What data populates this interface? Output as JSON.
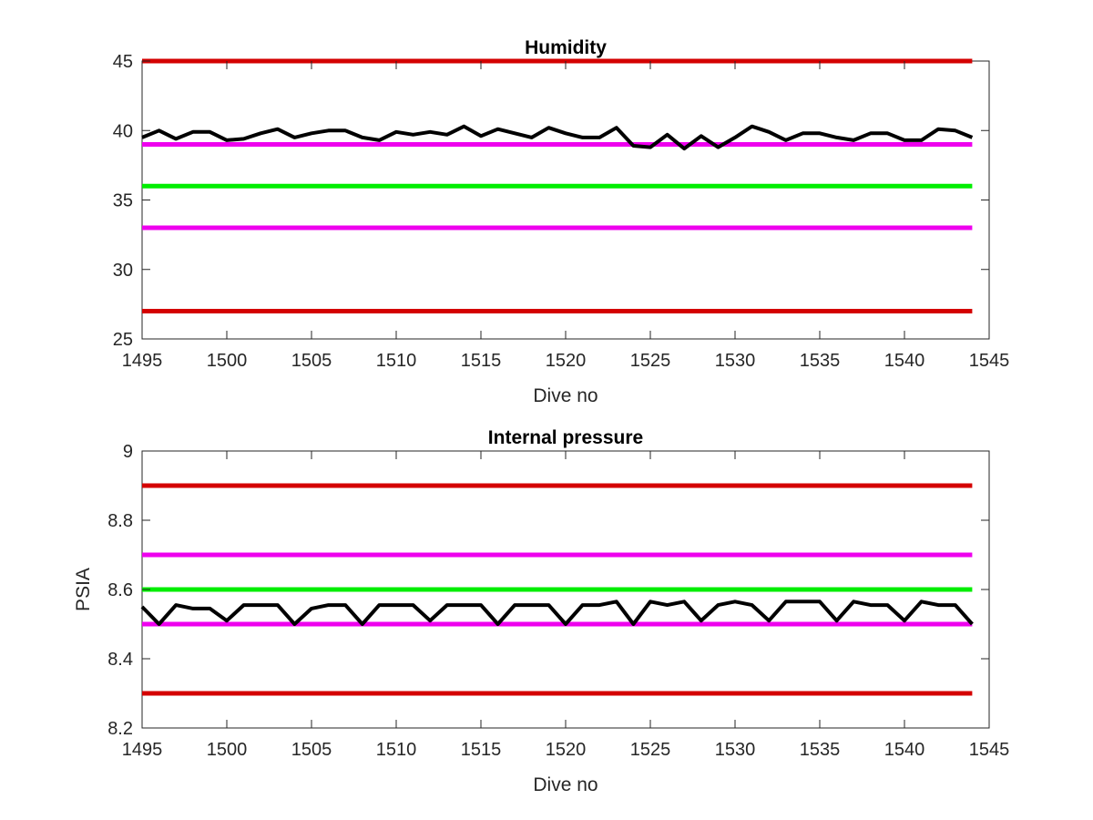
{
  "chart_data": [
    {
      "type": "line",
      "title": "Humidity",
      "xlabel": "Dive no",
      "ylabel": "",
      "xlim": [
        1495,
        1545
      ],
      "ylim": [
        25,
        45
      ],
      "xticks": [
        1495,
        1500,
        1505,
        1510,
        1515,
        1520,
        1525,
        1530,
        1535,
        1540,
        1545
      ],
      "yticks": [
        25,
        30,
        35,
        40,
        45
      ],
      "grid": false,
      "series": [
        {
          "color": "#000000",
          "x": [
            1495,
            1496,
            1497,
            1498,
            1499,
            1500,
            1501,
            1502,
            1503,
            1504,
            1505,
            1506,
            1507,
            1508,
            1509,
            1510,
            1511,
            1512,
            1513,
            1514,
            1515,
            1516,
            1517,
            1518,
            1519,
            1520,
            1521,
            1522,
            1523,
            1524,
            1525,
            1526,
            1527,
            1528,
            1529,
            1530,
            1531,
            1532,
            1533,
            1534,
            1535,
            1536,
            1537,
            1538,
            1539,
            1540,
            1541,
            1542,
            1543,
            1544
          ],
          "y": [
            39.5,
            40.0,
            39.4,
            39.9,
            39.9,
            39.3,
            39.4,
            39.8,
            40.1,
            39.5,
            39.8,
            40.0,
            40.0,
            39.5,
            39.3,
            39.9,
            39.7,
            39.9,
            39.7,
            40.3,
            39.6,
            40.1,
            39.8,
            39.5,
            40.2,
            39.8,
            39.5,
            39.5,
            40.2,
            38.9,
            38.8,
            39.7,
            38.7,
            39.6,
            38.8,
            39.5,
            40.3,
            39.9,
            39.3,
            39.8,
            39.8,
            39.5,
            39.3,
            39.8,
            39.8,
            39.3,
            39.3,
            40.1,
            40.0,
            39.5
          ]
        }
      ],
      "reference_lines": [
        {
          "y": 45,
          "color": "#d40000"
        },
        {
          "y": 39,
          "color": "#ee00ee"
        },
        {
          "y": 36,
          "color": "#00ee00"
        },
        {
          "y": 33,
          "color": "#ee00ee"
        },
        {
          "y": 27,
          "color": "#d40000"
        }
      ],
      "reference_x": [
        1495,
        1544
      ]
    },
    {
      "type": "line",
      "title": "Internal pressure",
      "xlabel": "Dive no",
      "ylabel": "PSIA",
      "xlim": [
        1495,
        1545
      ],
      "ylim": [
        8.2,
        9
      ],
      "xticks": [
        1495,
        1500,
        1505,
        1510,
        1515,
        1520,
        1525,
        1530,
        1535,
        1540,
        1545
      ],
      "yticks": [
        8.2,
        8.4,
        8.6,
        8.8,
        9
      ],
      "grid": false,
      "series": [
        {
          "color": "#000000",
          "x": [
            1495,
            1496,
            1497,
            1498,
            1499,
            1500,
            1501,
            1502,
            1503,
            1504,
            1505,
            1506,
            1507,
            1508,
            1509,
            1510,
            1511,
            1512,
            1513,
            1514,
            1515,
            1516,
            1517,
            1518,
            1519,
            1520,
            1521,
            1522,
            1523,
            1524,
            1525,
            1526,
            1527,
            1528,
            1529,
            1530,
            1531,
            1532,
            1533,
            1534,
            1535,
            1536,
            1537,
            1538,
            1539,
            1540,
            1541,
            1542,
            1543,
            1544
          ],
          "y": [
            8.55,
            8.5,
            8.555,
            8.545,
            8.545,
            8.51,
            8.555,
            8.555,
            8.555,
            8.5,
            8.545,
            8.555,
            8.555,
            8.5,
            8.555,
            8.555,
            8.555,
            8.51,
            8.555,
            8.555,
            8.555,
            8.5,
            8.555,
            8.555,
            8.555,
            8.5,
            8.555,
            8.555,
            8.565,
            8.5,
            8.565,
            8.555,
            8.565,
            8.51,
            8.555,
            8.565,
            8.555,
            8.51,
            8.565,
            8.565,
            8.565,
            8.51,
            8.565,
            8.555,
            8.555,
            8.51,
            8.565,
            8.555,
            8.555,
            8.5
          ]
        }
      ],
      "reference_lines": [
        {
          "y": 8.9,
          "color": "#d40000"
        },
        {
          "y": 8.7,
          "color": "#ee00ee"
        },
        {
          "y": 8.6,
          "color": "#00ee00"
        },
        {
          "y": 8.5,
          "color": "#ee00ee"
        },
        {
          "y": 8.3,
          "color": "#d40000"
        }
      ],
      "reference_x": [
        1495,
        1544
      ]
    }
  ]
}
